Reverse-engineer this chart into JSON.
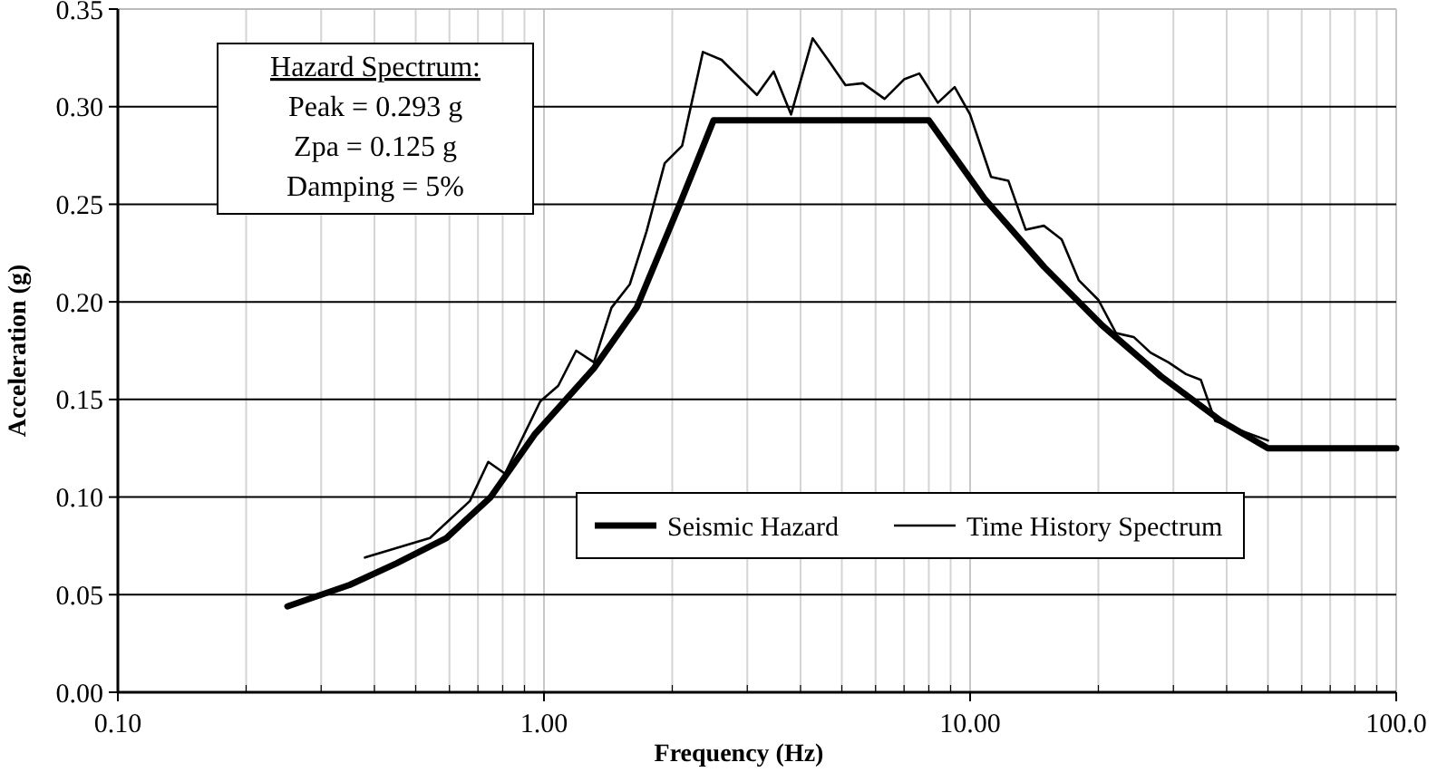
{
  "chart_data": {
    "type": "line",
    "xlabel": "Frequency (Hz)",
    "ylabel": "Acceleration (g)",
    "log": "x",
    "xlim": [
      0.1,
      100
    ],
    "xticks": [
      {
        "value": 0.1,
        "label": "0.10"
      },
      {
        "value": 1,
        "label": "1.00"
      },
      {
        "value": 10,
        "label": "10.00"
      },
      {
        "value": 100,
        "label": "100.0"
      }
    ],
    "ylim": [
      0,
      0.35
    ],
    "yticks": [
      {
        "value": 0,
        "label": "0.00"
      },
      {
        "value": 0.05,
        "label": "0.05"
      },
      {
        "value": 0.1,
        "label": "0.10"
      },
      {
        "value": 0.15,
        "label": "0.15"
      },
      {
        "value": 0.2,
        "label": "0.20"
      },
      {
        "value": 0.25,
        "label": "0.25"
      },
      {
        "value": 0.3,
        "label": "0.30"
      },
      {
        "value": 0.35,
        "label": "0.35"
      }
    ],
    "grid": true,
    "legend": "bottom right",
    "marker": "none",
    "line_style": "solid",
    "annotations": [
      "Hazard Spectrum:",
      "Peak = 0.293 g",
      "Zpa = 0.125 g",
      "Damping = 5%"
    ],
    "series": [
      {
        "name": "Seismic Hazard",
        "color": "#000000",
        "x": [
          0.25,
          0.35,
          0.45,
          0.59,
          0.75,
          0.95,
          1.31,
          1.65,
          2.11,
          2.5,
          8,
          10.8,
          14.9,
          20.4,
          28,
          38.8,
          50,
          100
        ],
        "values": [
          0.044,
          0.055,
          0.066,
          0.079,
          0.1,
          0.132,
          0.166,
          0.197,
          0.253,
          0.293,
          0.293,
          0.253,
          0.218,
          0.188,
          0.162,
          0.139,
          0.125,
          0.125
        ]
      },
      {
        "name": "Time History Spectrum",
        "color": "#000000",
        "x": [
          0.38,
          0.54,
          0.67,
          0.74,
          0.81,
          0.98,
          1.08,
          1.19,
          1.31,
          1.44,
          1.59,
          1.74,
          1.92,
          2.11,
          2.36,
          2.61,
          3.16,
          3.46,
          3.8,
          4.27,
          4.64,
          5.1,
          5.6,
          6.3,
          7,
          7.6,
          8.4,
          9.2,
          10,
          11.2,
          12.3,
          13.5,
          14.9,
          16.4,
          18,
          20,
          22,
          24.2,
          26.5,
          29.2,
          32.1,
          34.8,
          37.6,
          44.5,
          50
        ],
        "values": [
          0.069,
          0.079,
          0.098,
          0.118,
          0.112,
          0.149,
          0.157,
          0.175,
          0.169,
          0.197,
          0.209,
          0.236,
          0.271,
          0.28,
          0.328,
          0.324,
          0.306,
          0.318,
          0.296,
          0.335,
          0.324,
          0.311,
          0.312,
          0.304,
          0.314,
          0.317,
          0.302,
          0.31,
          0.296,
          0.264,
          0.262,
          0.237,
          0.239,
          0.232,
          0.211,
          0.201,
          0.184,
          0.182,
          0.174,
          0.169,
          0.163,
          0.16,
          0.139,
          0.133,
          0.129
        ]
      }
    ]
  }
}
